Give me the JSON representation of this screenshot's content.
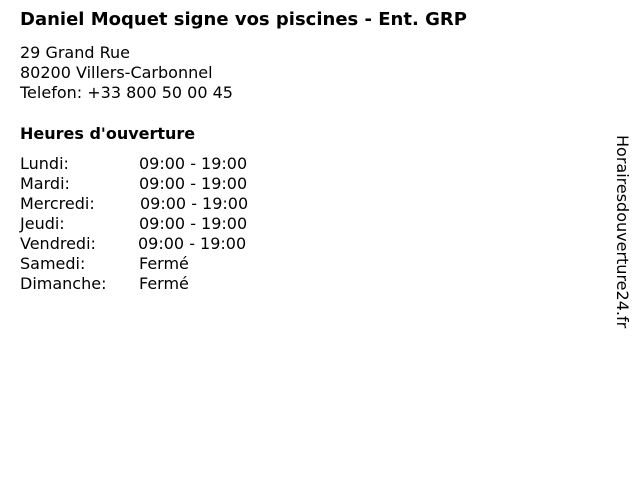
{
  "business": {
    "name": "Daniel Moquet signe vos piscines - Ent. GRP",
    "street": "29 Grand Rue",
    "city": "80200 Villers-Carbonnel",
    "phone": "Telefon: +33 800 50 00 45"
  },
  "hours": {
    "heading": "Heures d'ouverture",
    "rows": [
      {
        "day": "Lundi:",
        "time": "09:00 - 19:00"
      },
      {
        "day": "Mardi:",
        "time": "09:00 - 19:00"
      },
      {
        "day": "Mercredi:",
        "time": "09:00 - 19:00"
      },
      {
        "day": "Jeudi:",
        "time": "09:00 - 19:00"
      },
      {
        "day": "Vendredi:",
        "time": "09:00 - 19:00"
      },
      {
        "day": "Samedi:",
        "time": "Fermé"
      },
      {
        "day": "Dimanche:",
        "time": "Fermé"
      }
    ]
  },
  "watermark": "Horairesdouverture24.fr"
}
